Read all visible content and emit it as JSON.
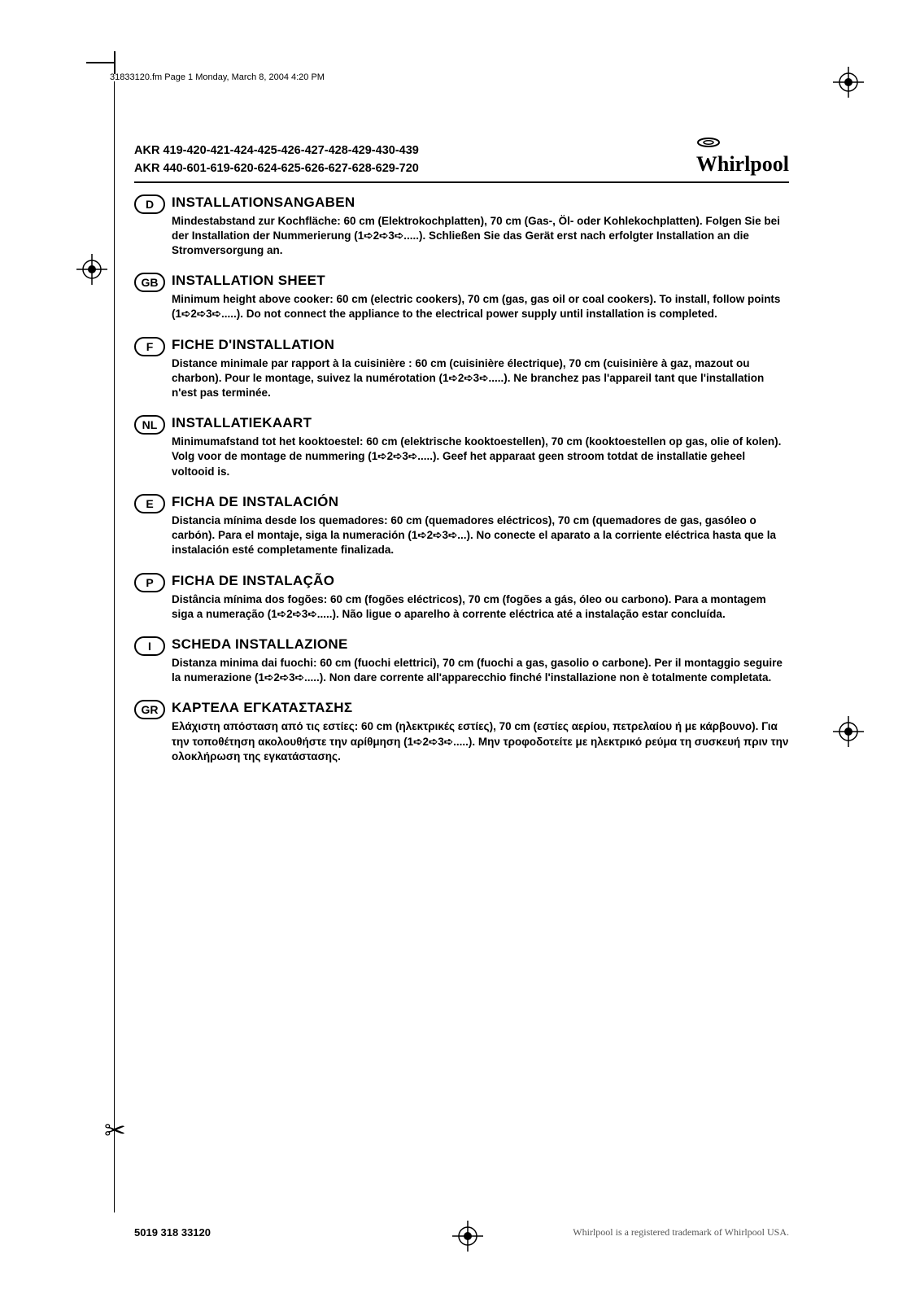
{
  "header_note": "31833120.fm  Page 1  Monday, March 8, 2004  4:20 PM",
  "models_line1": "AKR 419-420-421-424-425-426-427-428-429-430-439",
  "models_line2": "AKR 440-601-619-620-624-625-626-627-628-629-720",
  "brand": "Whirlpool",
  "sections": [
    {
      "code": "D",
      "title": "INSTALLATIONSANGABEN",
      "text": "Mindestabstand zur Kochfläche: 60 cm (Elektrokochplatten), 70 cm (Gas-, Öl- oder Kohlekochplatten). Folgen Sie bei der Installation der Nummerierung (1➪2➪3➪.....). Schließen Sie das Gerät erst nach erfolgter Installation an die Stromversorgung an."
    },
    {
      "code": "GB",
      "title": "INSTALLATION SHEET",
      "text": "Minimum height above cooker: 60 cm (electric cookers), 70 cm (gas, gas oil or coal cookers). To install, follow points (1➪2➪3➪.....). Do not connect the appliance to the electrical power supply until installation is completed."
    },
    {
      "code": "F",
      "title": "FICHE D'INSTALLATION",
      "text": "Distance minimale par rapport à la cuisinière : 60 cm (cuisinière électrique), 70 cm (cuisinière à gaz, mazout ou charbon). Pour le montage, suivez la numérotation (1➪2➪3➪.....). Ne branchez pas l'appareil tant que l'installation n'est pas terminée."
    },
    {
      "code": "NL",
      "title": "INSTALLATIEKAART",
      "text": "Minimumafstand tot het kooktoestel: 60 cm (elektrische kooktoestellen), 70 cm (kooktoestellen op gas, olie of kolen). Volg voor de montage de nummering (1➪2➪3➪.....). Geef het apparaat geen stroom totdat de installatie geheel voltooid is."
    },
    {
      "code": "E",
      "title": "FICHA DE INSTALACIÓN",
      "text": "Distancia mínima desde los quemadores: 60 cm (quemadores eléctricos), 70 cm (quemadores de gas, gasóleo o carbón). Para el montaje, siga la numeración (1➪2➪3➪...). No conecte el aparato a la corriente eléctrica hasta que la instalación esté completamente finalizada."
    },
    {
      "code": "P",
      "title": "FICHA DE INSTALAÇÃO",
      "text": "Distância mínima dos fogões: 60 cm (fogões eléctricos), 70 cm (fogões a gás, óleo ou carbono). Para a montagem siga a numeração (1➪2➪3➪.....). Não ligue o aparelho à corrente eléctrica até a instalação estar concluída."
    },
    {
      "code": "I",
      "title": "SCHEDA INSTALLAZIONE",
      "text": "Distanza minima dai fuochi: 60 cm (fuochi elettrici), 70 cm (fuochi a gas, gasolio o carbone). Per il montaggio seguire la numerazione (1➪2➪3➪.....). Non dare corrente all'apparecchio finché l'installazione non è totalmente completata."
    },
    {
      "code": "GR",
      "title": "ΚΑΡΤΕΛΑ ΕΓΚΑΤΑΣΤΑΣΗΣ",
      "text": "Ελάχιστη απόσταση από τις εστίες: 60 cm (ηλεκτρικές εστίες), 70 cm (εστίες αερίου, πετρελαίου ή με κάρβουνο). Για την τοποθέτηση ακολουθήστε την αρίθμηση (1➪2➪3➪.....). Μην τροφοδοτείτε με ηλεκτρικό ρεύμα τη συσκευή πριν την ολοκλήρωση της εγκατάστασης."
    }
  ],
  "footer_num": "5019 318 33120",
  "footer_trademark": "Whirlpool is a registered trademark of Whirlpool USA.",
  "colors": {
    "text": "#000000",
    "bg": "#ffffff",
    "trademark": "#555555"
  }
}
